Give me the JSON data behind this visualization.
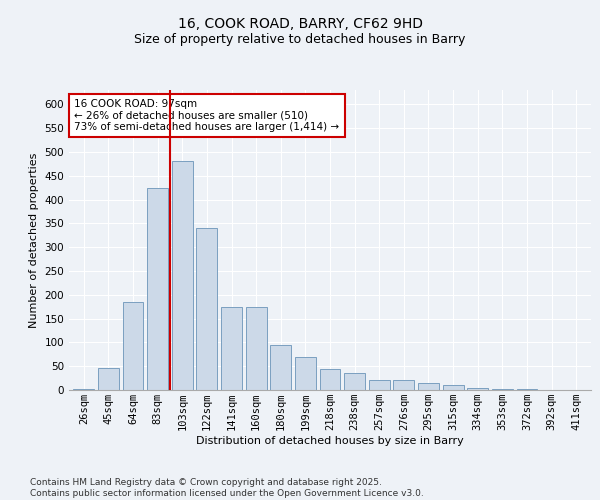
{
  "title1": "16, COOK ROAD, BARRY, CF62 9HD",
  "title2": "Size of property relative to detached houses in Barry",
  "xlabel": "Distribution of detached houses by size in Barry",
  "ylabel": "Number of detached properties",
  "categories": [
    "26sqm",
    "45sqm",
    "64sqm",
    "83sqm",
    "103sqm",
    "122sqm",
    "141sqm",
    "160sqm",
    "180sqm",
    "199sqm",
    "218sqm",
    "238sqm",
    "257sqm",
    "276sqm",
    "295sqm",
    "315sqm",
    "334sqm",
    "353sqm",
    "372sqm",
    "392sqm",
    "411sqm"
  ],
  "values": [
    2,
    47,
    185,
    425,
    480,
    340,
    175,
    175,
    95,
    70,
    45,
    35,
    20,
    20,
    15,
    10,
    5,
    3,
    2,
    1,
    1
  ],
  "bar_color": "#ccd9e8",
  "bar_edge_color": "#7a9fc0",
  "vline_x_index": 4,
  "vline_color": "#cc0000",
  "annotation_line1": "16 COOK ROAD: 97sqm",
  "annotation_line2": "← 26% of detached houses are smaller (510)",
  "annotation_line3": "73% of semi-detached houses are larger (1,414) →",
  "annotation_box_facecolor": "#ffffff",
  "annotation_box_edgecolor": "#cc0000",
  "ylim": [
    0,
    630
  ],
  "yticks": [
    0,
    50,
    100,
    150,
    200,
    250,
    300,
    350,
    400,
    450,
    500,
    550,
    600
  ],
  "footnote": "Contains HM Land Registry data © Crown copyright and database right 2025.\nContains public sector information licensed under the Open Government Licence v3.0.",
  "background_color": "#eef2f7",
  "plot_bg_color": "#eef2f7",
  "title_fontsize": 10,
  "subtitle_fontsize": 9,
  "axis_label_fontsize": 8,
  "tick_fontsize": 7.5,
  "annotation_fontsize": 7.5,
  "footnote_fontsize": 6.5
}
